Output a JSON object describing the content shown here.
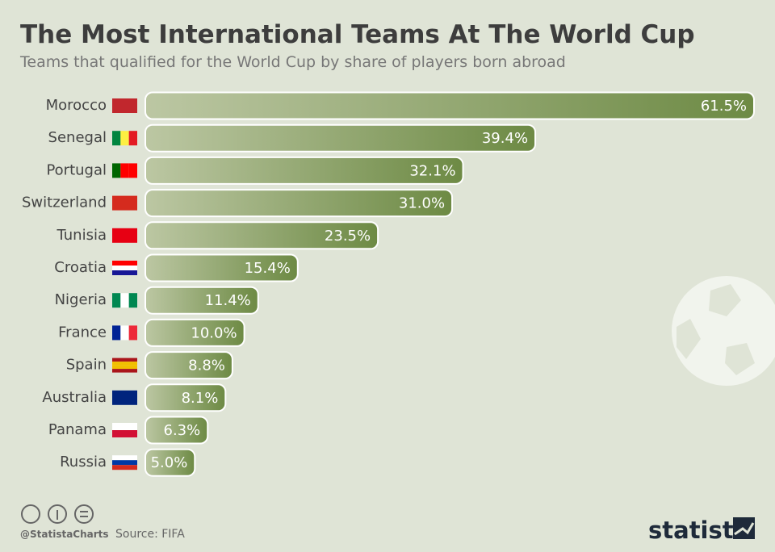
{
  "chart_data": {
    "type": "bar",
    "title": "The Most International Teams At The World Cup",
    "subtitle": "Teams that qualified for the World Cup by share of players born abroad",
    "categories": [
      "Morocco",
      "Senegal",
      "Portugal",
      "Switzerland",
      "Tunisia",
      "Croatia",
      "Nigeria",
      "France",
      "Spain",
      "Australia",
      "Panama",
      "Russia"
    ],
    "values": [
      61.5,
      39.4,
      32.1,
      31.0,
      23.5,
      15.4,
      11.4,
      10.0,
      8.8,
      8.1,
      6.3,
      5.0
    ],
    "value_labels": [
      "61.5%",
      "39.4%",
      "32.1%",
      "31.0%",
      "23.5%",
      "15.4%",
      "11.4%",
      "10.0%",
      "8.8%",
      "8.1%",
      "6.3%",
      "5.0%"
    ],
    "color": "#6d8a44",
    "source": "Source: FIFA",
    "credit": "@StatistaCharts",
    "brand": "statista"
  }
}
